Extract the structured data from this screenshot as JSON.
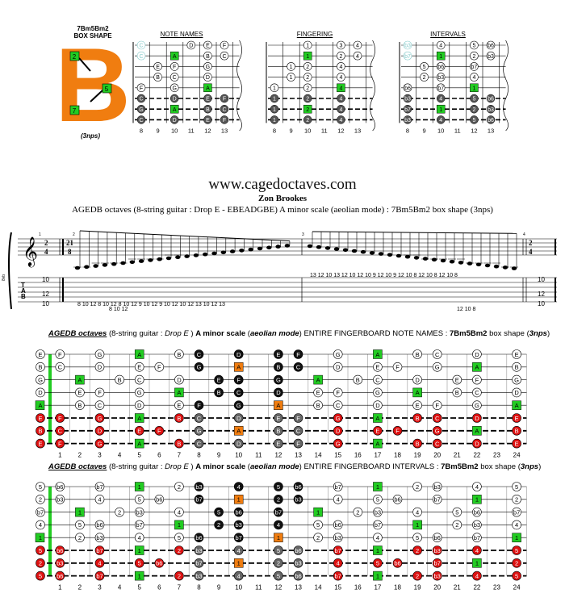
{
  "box_shape": {
    "name": "7Bm5Bm2",
    "caption": "BOX SHAPE",
    "letter": "B",
    "nps_label": "(3nps)",
    "fingers": [
      "2",
      "5",
      "7"
    ]
  },
  "diagrams": {
    "titles": [
      "NOTE NAMES",
      "FINGERING",
      "INTERVALS"
    ],
    "fret_numbers": [
      "8",
      "9",
      "10",
      "11",
      "12",
      "13"
    ],
    "note_names": [
      [
        "C",
        "",
        "",
        "D",
        "E",
        "F"
      ],
      [
        "C",
        "",
        "A",
        "",
        "B",
        "C"
      ],
      [
        "",
        "E",
        "F",
        "",
        "G",
        ""
      ],
      [
        "",
        "B",
        "C",
        "",
        "D",
        ""
      ],
      [
        "F",
        "",
        "G",
        "",
        "A",
        ""
      ],
      [
        "C",
        "",
        "D",
        "",
        "E",
        "F"
      ],
      [
        "G",
        "",
        "A",
        "",
        "B",
        "C"
      ],
      [
        "C",
        "",
        "D",
        "",
        "E",
        "F"
      ]
    ],
    "fingering": [
      [
        "",
        "",
        "1",
        "",
        "3",
        "4"
      ],
      [
        "",
        "",
        "1",
        "",
        "2",
        "4"
      ],
      [
        "",
        "1",
        "2",
        "",
        "4",
        ""
      ],
      [
        "",
        "1",
        "2",
        "",
        "4",
        ""
      ],
      [
        "1",
        "",
        "2",
        "",
        "4",
        ""
      ],
      [
        "1",
        "",
        "2",
        "",
        "4",
        ""
      ],
      [
        "1",
        "",
        "2",
        "",
        "4",
        ""
      ],
      [
        "1",
        "",
        "2",
        "",
        "4",
        ""
      ]
    ],
    "intervals": [
      [
        "b3",
        "",
        "4",
        "",
        "5",
        "b6"
      ],
      [
        "b7",
        "",
        "1",
        "",
        "2",
        "b3"
      ],
      [
        "",
        "5",
        "b6",
        "",
        "b7",
        ""
      ],
      [
        "",
        "2",
        "b3",
        "",
        "4",
        ""
      ],
      [
        "b6",
        "",
        "b7",
        "",
        "1",
        ""
      ],
      [
        "b3",
        "",
        "4",
        "",
        "5",
        "b6"
      ],
      [
        "b7",
        "",
        "1",
        "",
        "2",
        "b3"
      ],
      [
        "b3",
        "",
        "4",
        "",
        "5",
        "b6"
      ]
    ]
  },
  "header": {
    "url": "www.cagedoctaves.com",
    "author": "Zon Brookes",
    "description": "AGEDB octaves (8-string guitar : Drop E - EBEADGBE) A minor scale (aeolian mode) : 7Bm5Bm2 box shape (3nps)"
  },
  "staff": {
    "time_sig_left": [
      "2",
      "4"
    ],
    "time_sig_mid": [
      "21",
      "8"
    ],
    "time_sig_right": [
      "2",
      "4"
    ],
    "clef_caption": "8vb",
    "measure_nums": [
      "1",
      "2",
      "3",
      "4"
    ],
    "tab_letters": [
      "T",
      "A",
      "B"
    ],
    "tab_fixed_left": [
      "10",
      "12",
      "10"
    ],
    "tab_fixed_right": [
      "10",
      "12",
      "10"
    ],
    "tab_line1": "8  10 12    8  10 12    8  10 12    9  10 12    9  10 12    10 12 13    10 12 13",
    "tab_line2": "8  10 12",
    "tab_desc1": "13 12 10    13 12 10    12 10 9    12 10 9    12 10 8    12 10 8    12 10 8",
    "tab_desc2": "12 10 8"
  },
  "board1": {
    "title_parts": [
      "AGEDB octaves",
      " (8-string guitar : ",
      "Drop E",
      " ) ",
      "A minor scale",
      " (",
      "aeolian mode",
      ") ENTIRE FINGERBOARD NOTE NAMES : ",
      "7Bm5Bm2",
      " box shape (",
      "3nps",
      ")"
    ],
    "fret_numbers": [
      "1",
      "2",
      "3",
      "4",
      "5",
      "6",
      "7",
      "8",
      "9",
      "10",
      "11",
      "12",
      "13",
      "14",
      "15",
      "16",
      "17",
      "18",
      "19",
      "20",
      "21",
      "22",
      "23",
      "24"
    ],
    "open": [
      "E",
      "B",
      "G",
      "D",
      "A",
      "E",
      "B",
      "E"
    ],
    "strings": [
      [
        "F",
        "",
        "G",
        "",
        "A",
        "",
        "B",
        "C",
        "",
        "D",
        "",
        "E",
        "F",
        "",
        "G",
        "",
        "A",
        "",
        "B",
        "C",
        "",
        "D",
        "",
        "E"
      ],
      [
        "C",
        "",
        "D",
        "",
        "E",
        "F",
        "",
        "G",
        "",
        "A",
        "",
        "B",
        "C",
        "",
        "D",
        "",
        "E",
        "F",
        "",
        "G",
        "",
        "A",
        "",
        "B"
      ],
      [
        "",
        "A",
        "",
        "B",
        "C",
        "",
        "D",
        "",
        "E",
        "F",
        "",
        "G",
        "",
        "A",
        "",
        "B",
        "C",
        "",
        "D",
        "",
        "E",
        "F",
        "",
        "G"
      ],
      [
        "",
        "E",
        "F",
        "",
        "G",
        "",
        "A",
        "",
        "B",
        "C",
        "",
        "D",
        "",
        "E",
        "F",
        "",
        "G",
        "",
        "A",
        "",
        "B",
        "C",
        "",
        "D"
      ],
      [
        "",
        "B",
        "C",
        "",
        "D",
        "",
        "E",
        "F",
        "",
        "G",
        "",
        "A",
        "",
        "B",
        "C",
        "",
        "D",
        "",
        "E",
        "F",
        "",
        "G",
        "",
        "A"
      ],
      [
        "F",
        "",
        "G",
        "",
        "A",
        "",
        "B",
        "C",
        "",
        "D",
        "",
        "E",
        "F",
        "",
        "G",
        "",
        "A",
        "",
        "B",
        "C",
        "",
        "D",
        "",
        "E"
      ],
      [
        "C",
        "",
        "D",
        "",
        "E",
        "F",
        "",
        "G",
        "",
        "A",
        "",
        "B",
        "C",
        "",
        "D",
        "",
        "E",
        "F",
        "",
        "G",
        "",
        "A",
        "",
        "B"
      ],
      [
        "F",
        "",
        "G",
        "",
        "A",
        "",
        "B",
        "C",
        "",
        "D",
        "",
        "E",
        "F",
        "",
        "G",
        "",
        "A",
        "",
        "B",
        "C",
        "",
        "D",
        "",
        "E"
      ]
    ]
  },
  "board2": {
    "title_parts": [
      "AGEDB octaves",
      " (8-string guitar : ",
      "Drop E",
      " ) ",
      "A minor scale",
      " (",
      "aeolian mode",
      ") ENTIRE FINGERBOARD INTERVALS : ",
      "7Bm5Bm2",
      " box shape (",
      "3nps",
      ")"
    ],
    "fret_numbers": [
      "1",
      "2",
      "3",
      "4",
      "5",
      "6",
      "7",
      "8",
      "9",
      "10",
      "11",
      "12",
      "13",
      "14",
      "15",
      "16",
      "17",
      "18",
      "19",
      "20",
      "21",
      "22",
      "23",
      "24"
    ],
    "open": [
      "5",
      "2",
      "b7",
      "4",
      "1",
      "5",
      "2",
      "5"
    ],
    "strings": [
      [
        "b6",
        "",
        "b7",
        "",
        "1",
        "",
        "2",
        "b3",
        "",
        "4",
        "",
        "5",
        "b6",
        "",
        "b7",
        "",
        "1",
        "",
        "2",
        "b3",
        "",
        "4",
        "",
        "5"
      ],
      [
        "b3",
        "",
        "4",
        "",
        "5",
        "b6",
        "",
        "b7",
        "",
        "1",
        "",
        "2",
        "b3",
        "",
        "4",
        "",
        "5",
        "b6",
        "",
        "b7",
        "",
        "1",
        "",
        "2"
      ],
      [
        "",
        "1",
        "",
        "2",
        "b3",
        "",
        "4",
        "",
        "5",
        "b6",
        "",
        "b7",
        "",
        "1",
        "",
        "2",
        "b3",
        "",
        "4",
        "",
        "5",
        "b6",
        "",
        "b7"
      ],
      [
        "",
        "5",
        "b6",
        "",
        "b7",
        "",
        "1",
        "",
        "2",
        "b3",
        "",
        "4",
        "",
        "5",
        "b6",
        "",
        "b7",
        "",
        "1",
        "",
        "2",
        "b3",
        "",
        "4"
      ],
      [
        "",
        "2",
        "b3",
        "",
        "4",
        "",
        "5",
        "b6",
        "",
        "b7",
        "",
        "1",
        "",
        "2",
        "b3",
        "",
        "4",
        "",
        "5",
        "b6",
        "",
        "b7",
        "",
        "1"
      ],
      [
        "b6",
        "",
        "b7",
        "",
        "1",
        "",
        "2",
        "b3",
        "",
        "4",
        "",
        "5",
        "b6",
        "",
        "b7",
        "",
        "1",
        "",
        "2",
        "b3",
        "",
        "4",
        "",
        "5"
      ],
      [
        "b3",
        "",
        "4",
        "",
        "5",
        "b6",
        "",
        "b7",
        "",
        "1",
        "",
        "2",
        "b3",
        "",
        "4",
        "",
        "5",
        "b6",
        "",
        "b7",
        "",
        "1",
        "",
        "2"
      ],
      [
        "b6",
        "",
        "b7",
        "",
        "1",
        "",
        "2",
        "b3",
        "",
        "4",
        "",
        "5",
        "b6",
        "",
        "b7",
        "",
        "1",
        "",
        "2",
        "b3",
        "",
        "4",
        "",
        "5"
      ]
    ]
  },
  "colors": {
    "root": "#22cc22",
    "box_orange": "#f07d10",
    "red": "#dd1111",
    "black": "#111111",
    "grey": "#666666"
  }
}
